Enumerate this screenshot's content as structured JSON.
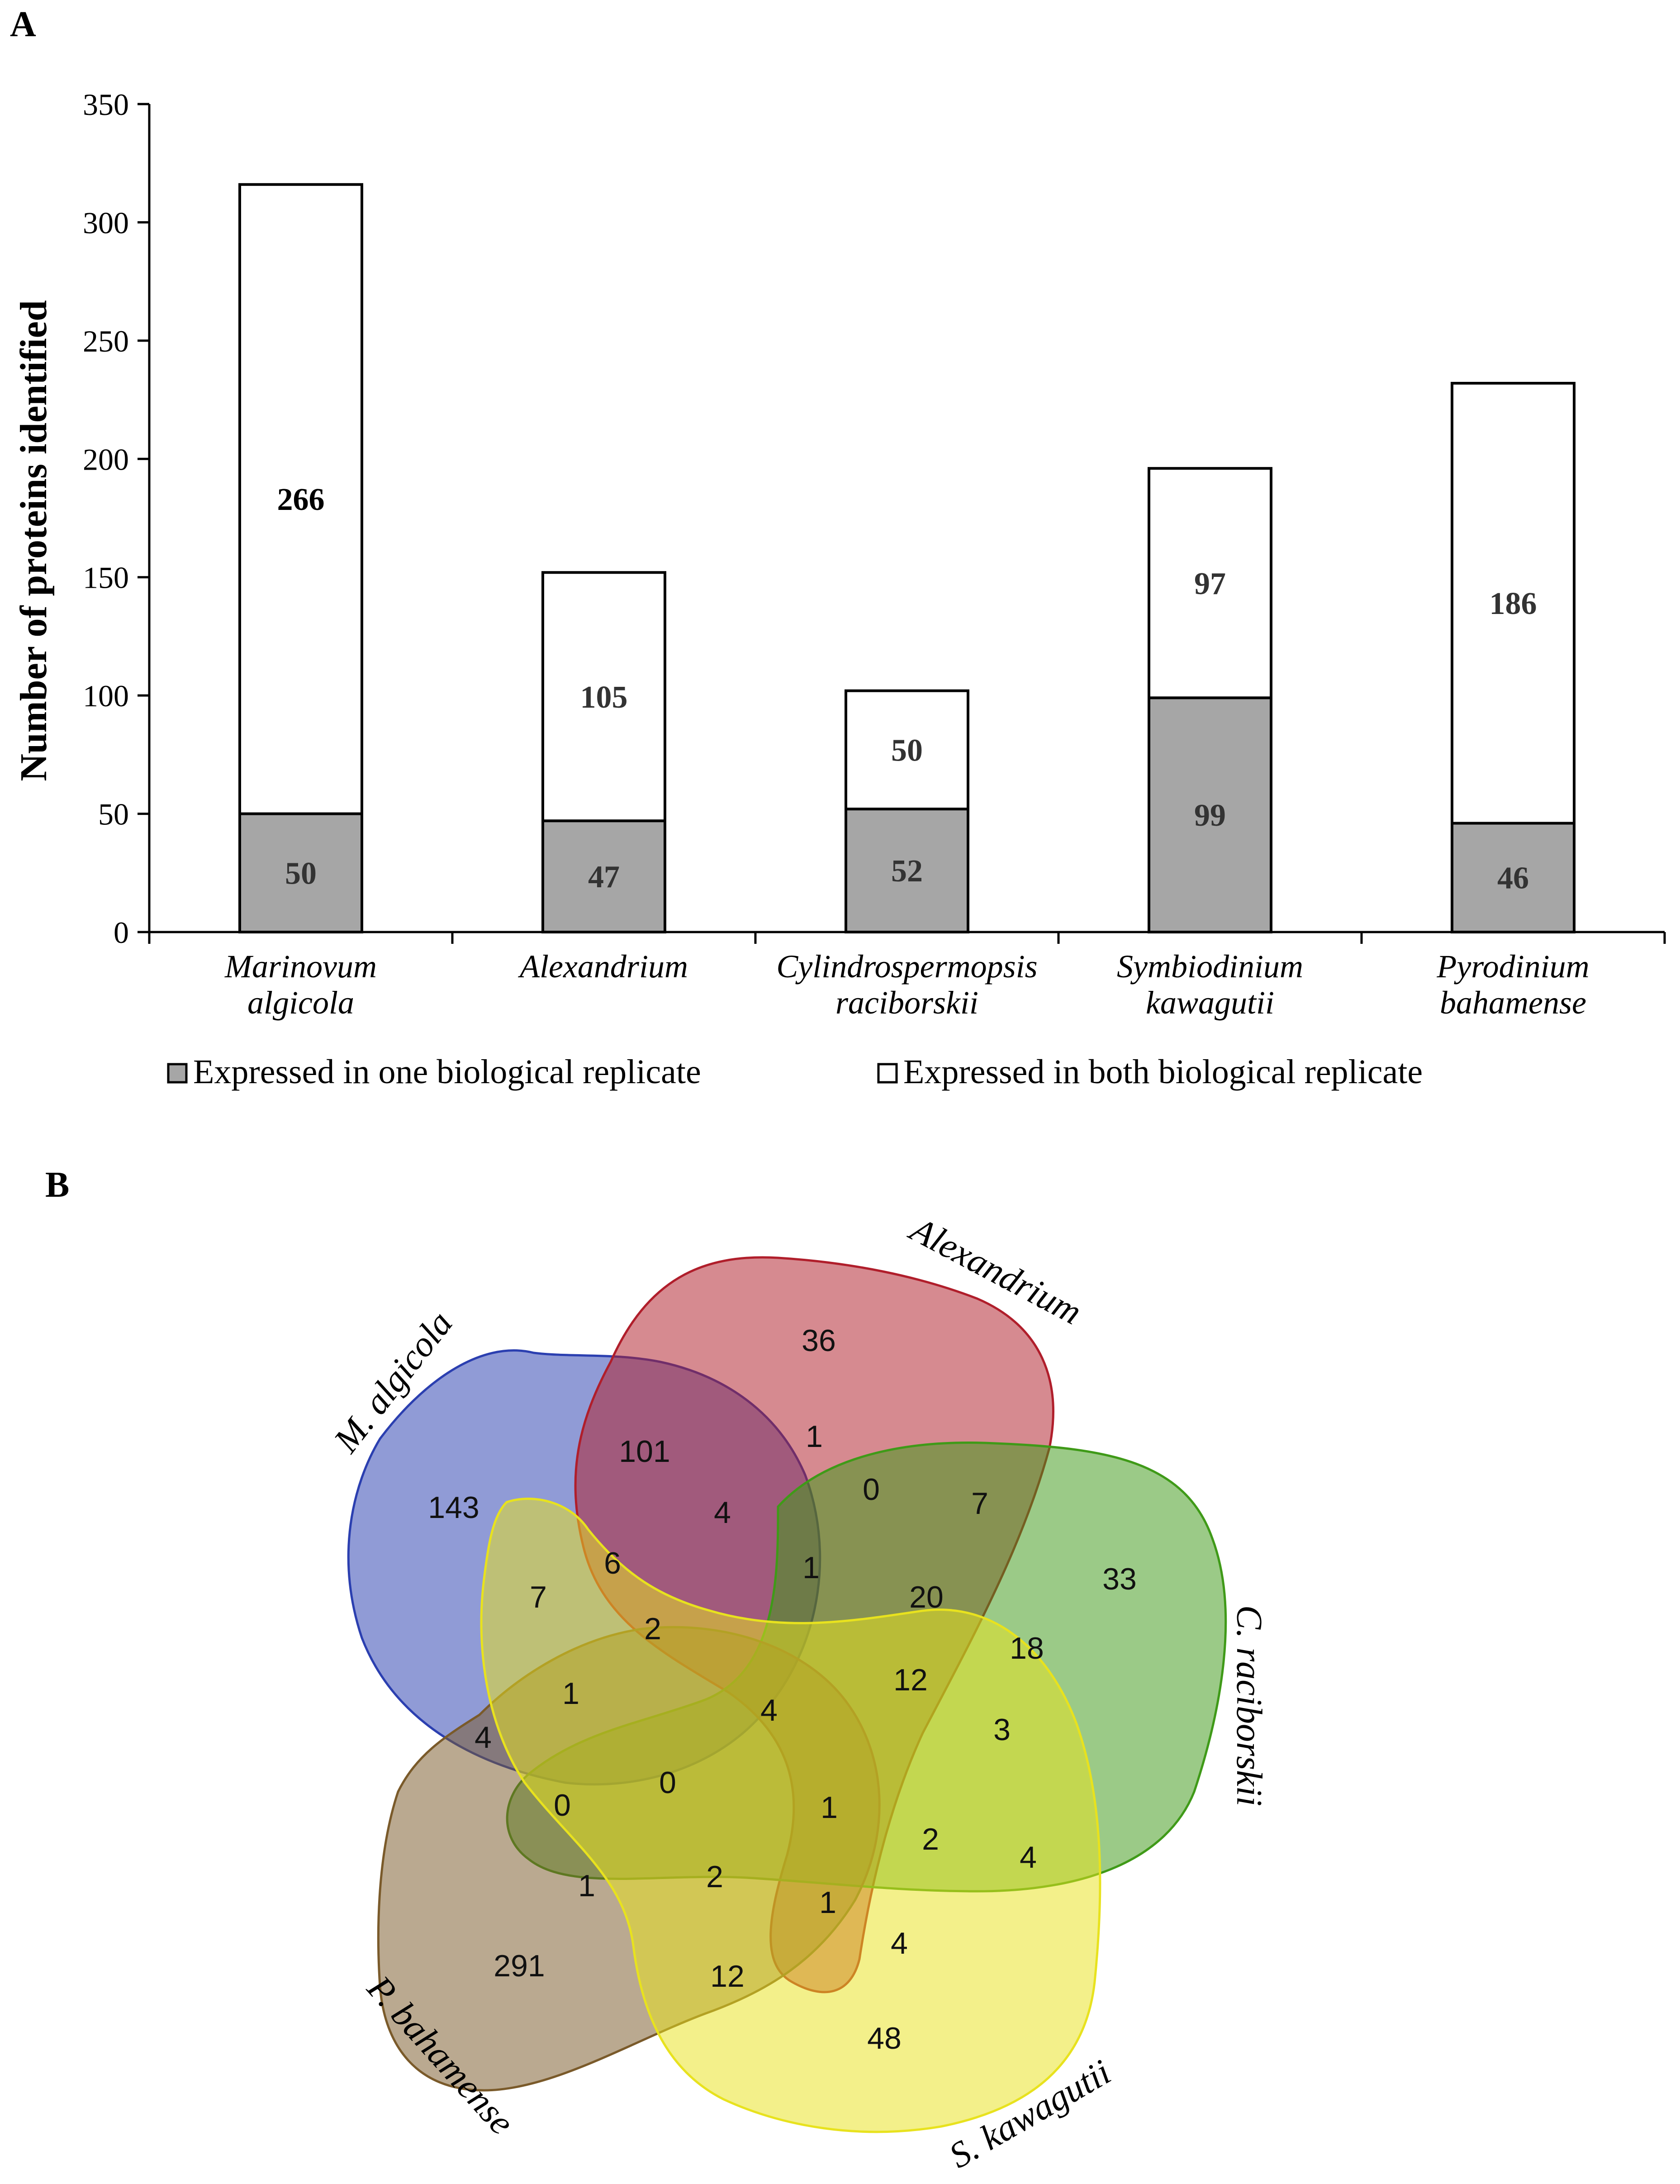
{
  "panel_a": {
    "label": "A"
  },
  "panel_b": {
    "label": "B"
  },
  "colors": {
    "expressed_one": "#a6a6a6",
    "expressed_both": "#ffffff",
    "m_algicola": "#2b3fb0",
    "alexandrium": "#b01e2b",
    "c_raciborskii": "#3f9a18",
    "p_bahamense": "#7a5a2a",
    "s_kawagutii": "#e8e21e"
  },
  "chart_data": {
    "type": "bar",
    "stacked": true,
    "ylabel": "Number of proteins identified",
    "xlabel": "",
    "ylim": [
      0,
      350
    ],
    "yticks": [
      0,
      50,
      100,
      150,
      200,
      250,
      300,
      350
    ],
    "categories": [
      [
        "Marinovum",
        "algicola"
      ],
      [
        "Alexandrium"
      ],
      [
        "Cylindrospermopsis",
        "raciborskii"
      ],
      [
        "Symbiodinium",
        "kawagutii"
      ],
      [
        "Pyrodinium",
        "bahamense"
      ]
    ],
    "series": [
      {
        "name": "Expressed in one biological replicate",
        "values": [
          50,
          47,
          52,
          99,
          46
        ]
      },
      {
        "name": "Expressed in both biological replicate",
        "values": [
          266,
          105,
          50,
          97,
          186
        ]
      }
    ],
    "legend": "bottom"
  },
  "venn": {
    "sets": {
      "m_algicola": "M. algicola",
      "alexandrium": "Alexandrium",
      "c_raciborskii": "C. raciborskii",
      "p_bahamense": "P. bahamense",
      "s_kawagutii": "S. kawagutii"
    },
    "counts": [
      "36",
      "101",
      "143",
      "1",
      "0",
      "7",
      "4",
      "1",
      "20",
      "33",
      "7",
      "6",
      "2",
      "18",
      "1",
      "4",
      "12",
      "3",
      "4",
      "0",
      "0",
      "1",
      "2",
      "4",
      "1",
      "2",
      "1",
      "291",
      "12",
      "4",
      "48"
    ]
  }
}
